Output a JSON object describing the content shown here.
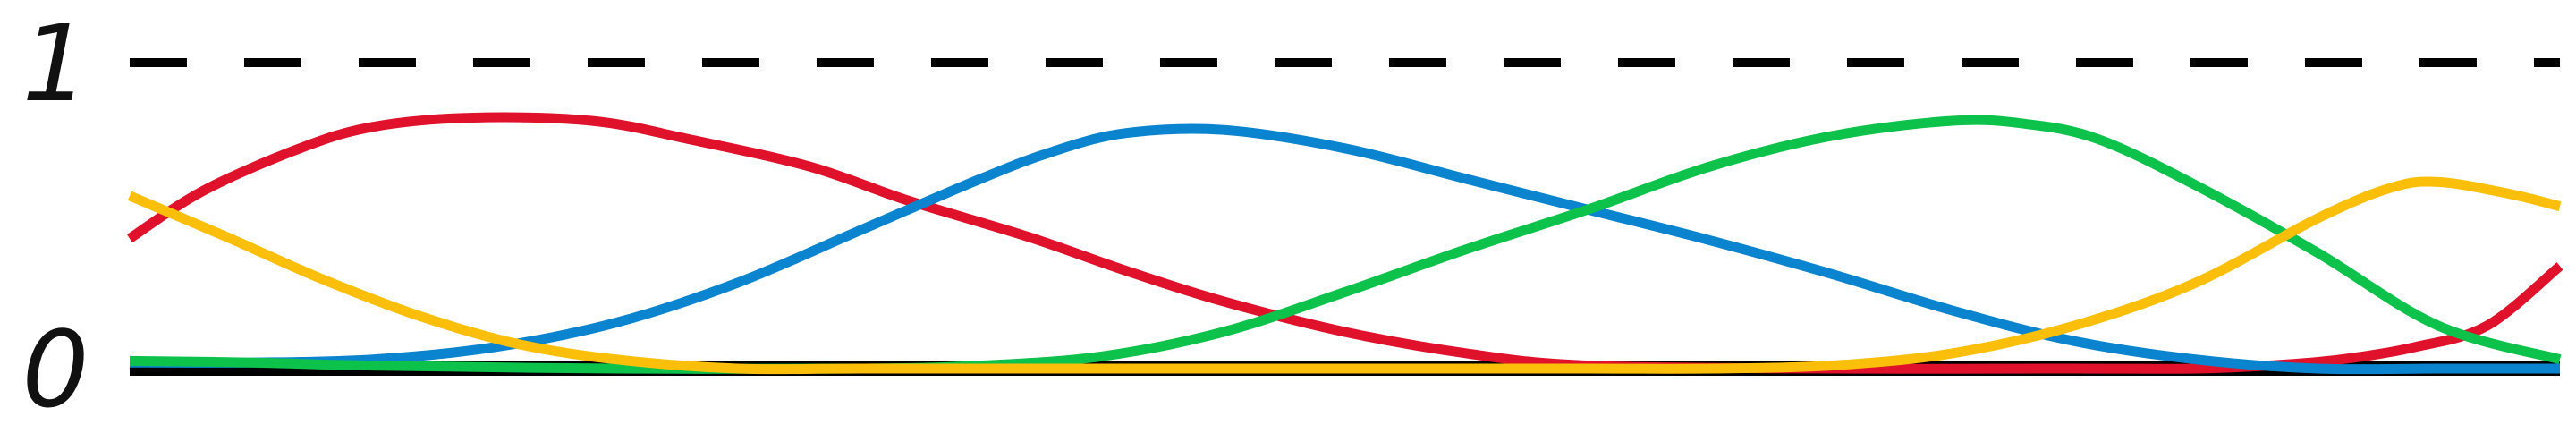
{
  "chart_data": {
    "type": "line",
    "title": "",
    "xlabel": "",
    "ylabel": "",
    "xlim": [
      0,
      1
    ],
    "ylim": [
      0,
      1
    ],
    "y_ticks": [
      {
        "value": 0,
        "label": "0"
      },
      {
        "value": 1,
        "label": "1"
      }
    ],
    "reference_line": {
      "value": 1,
      "style": "dashed",
      "color": "#000000"
    },
    "baseline": {
      "value": 0,
      "color": "#000000"
    },
    "grid": false,
    "legend": "none",
    "series": [
      {
        "color": "#e0112b",
        "x": [
          0,
          0.03,
          0.07,
          0.1,
          0.14,
          0.19,
          0.23,
          0.28,
          0.32,
          0.37,
          0.41,
          0.45,
          0.5,
          0.55,
          0.6,
          0.7,
          0.8,
          0.85,
          0.88,
          0.91,
          0.94,
          0.97,
          1
        ],
        "values": [
          0.425,
          0.58,
          0.72,
          0.79,
          0.82,
          0.81,
          0.75,
          0.66,
          0.55,
          0.43,
          0.32,
          0.22,
          0.12,
          0.05,
          0.01,
          0.0,
          0.0,
          0.0,
          0.01,
          0.03,
          0.07,
          0.14,
          0.335
        ]
      },
      {
        "color": "#0a84cf",
        "x": [
          0,
          0.05,
          0.1,
          0.15,
          0.2,
          0.25,
          0.3,
          0.35,
          0.38,
          0.41,
          0.45,
          0.5,
          0.55,
          0.6,
          0.65,
          0.7,
          0.75,
          0.8,
          0.85,
          0.9,
          0.95,
          1
        ],
        "values": [
          0.02,
          0.02,
          0.03,
          0.07,
          0.15,
          0.28,
          0.45,
          0.62,
          0.71,
          0.77,
          0.78,
          0.72,
          0.62,
          0.52,
          0.42,
          0.31,
          0.19,
          0.09,
          0.03,
          0.0,
          0.0,
          0.0
        ]
      },
      {
        "color": "#0cc24a",
        "x": [
          0,
          0.05,
          0.1,
          0.2,
          0.3,
          0.35,
          0.4,
          0.45,
          0.5,
          0.55,
          0.6,
          0.65,
          0.7,
          0.75,
          0.78,
          0.81,
          0.85,
          0.9,
          0.95,
          1
        ],
        "values": [
          0.025,
          0.02,
          0.01,
          0.0,
          0.0,
          0.01,
          0.04,
          0.12,
          0.25,
          0.39,
          0.52,
          0.66,
          0.76,
          0.81,
          0.8,
          0.75,
          0.6,
          0.38,
          0.14,
          0.03
        ]
      },
      {
        "color": "#fbbf0a",
        "x": [
          0,
          0.04,
          0.08,
          0.12,
          0.16,
          0.2,
          0.25,
          0.3,
          0.4,
          0.5,
          0.6,
          0.65,
          0.7,
          0.75,
          0.8,
          0.85,
          0.9,
          0.93,
          0.95,
          0.98,
          1
        ],
        "values": [
          0.565,
          0.43,
          0.29,
          0.17,
          0.08,
          0.03,
          0.0,
          0.0,
          0.0,
          0.0,
          0.0,
          0.0,
          0.01,
          0.05,
          0.14,
          0.28,
          0.49,
          0.59,
          0.61,
          0.57,
          0.53
        ]
      }
    ]
  }
}
